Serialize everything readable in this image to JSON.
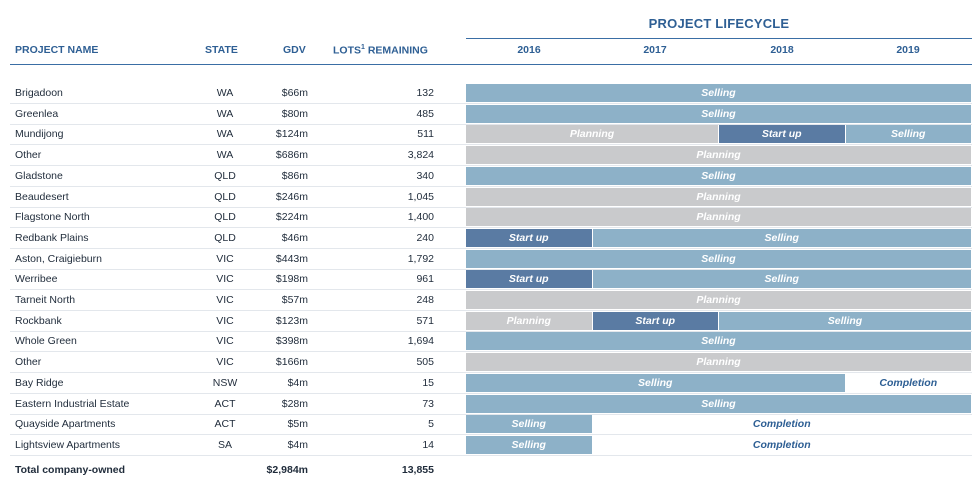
{
  "headers": {
    "project_name": "PROJECT NAME",
    "state": "STATE",
    "gdv": "GDV",
    "lots": "LOTS",
    "lots_sup": "1",
    "lots_suffix": " REMAINING",
    "lifecycle": "PROJECT LIFECYCLE",
    "years": [
      "2016",
      "2017",
      "2018",
      "2019"
    ]
  },
  "chart_data": {
    "type": "table",
    "title": "PROJECT LIFECYCLE",
    "x_range": [
      2016,
      2020
    ],
    "stage_colors": {
      "Selling": "#8db1c8",
      "Planning": "#c9cacc",
      "Start up": "#5a7ba3",
      "Completion": "#ffffff"
    },
    "rows": [
      {
        "name": "Brigadoon",
        "state": "WA",
        "gdv": "$66m",
        "lots": "132",
        "stages": [
          {
            "label": "Selling",
            "start": 2016,
            "end": 2020
          }
        ]
      },
      {
        "name": "Greenlea",
        "state": "WA",
        "gdv": "$80m",
        "lots": "485",
        "stages": [
          {
            "label": "Selling",
            "start": 2016,
            "end": 2020
          }
        ]
      },
      {
        "name": "Mundijong",
        "state": "WA",
        "gdv": "$124m",
        "lots": "511",
        "stages": [
          {
            "label": "Planning",
            "start": 2016,
            "end": 2018
          },
          {
            "label": "Start up",
            "start": 2018,
            "end": 2019
          },
          {
            "label": "Selling",
            "start": 2019,
            "end": 2020
          }
        ]
      },
      {
        "name": "Other",
        "state": "WA",
        "gdv": "$686m",
        "lots": "3,824",
        "stages": [
          {
            "label": "Planning",
            "start": 2016,
            "end": 2020
          }
        ]
      },
      {
        "name": "Gladstone",
        "state": "QLD",
        "gdv": "$86m",
        "lots": "340",
        "stages": [
          {
            "label": "Selling",
            "start": 2016,
            "end": 2020
          }
        ]
      },
      {
        "name": "Beaudesert",
        "state": "QLD",
        "gdv": "$246m",
        "lots": "1,045",
        "stages": [
          {
            "label": "Planning",
            "start": 2016,
            "end": 2020
          }
        ]
      },
      {
        "name": "Flagstone North",
        "state": "QLD",
        "gdv": "$224m",
        "lots": "1,400",
        "stages": [
          {
            "label": "Planning",
            "start": 2016,
            "end": 2020
          }
        ]
      },
      {
        "name": "Redbank Plains",
        "state": "QLD",
        "gdv": "$46m",
        "lots": "240",
        "stages": [
          {
            "label": "Start up",
            "start": 2016,
            "end": 2017
          },
          {
            "label": "Selling",
            "start": 2017,
            "end": 2020
          }
        ]
      },
      {
        "name": "Aston, Craigieburn",
        "state": "VIC",
        "gdv": "$443m",
        "lots": "1,792",
        "stages": [
          {
            "label": "Selling",
            "start": 2016,
            "end": 2020
          }
        ]
      },
      {
        "name": "Werribee",
        "state": "VIC",
        "gdv": "$198m",
        "lots": "961",
        "stages": [
          {
            "label": "Start up",
            "start": 2016,
            "end": 2017
          },
          {
            "label": "Selling",
            "start": 2017,
            "end": 2020
          }
        ]
      },
      {
        "name": "Tarneit North",
        "state": "VIC",
        "gdv": "$57m",
        "lots": "248",
        "stages": [
          {
            "label": "Planning",
            "start": 2016,
            "end": 2020
          }
        ]
      },
      {
        "name": "Rockbank",
        "state": "VIC",
        "gdv": "$123m",
        "lots": "571",
        "stages": [
          {
            "label": "Planning",
            "start": 2016,
            "end": 2017
          },
          {
            "label": "Start up",
            "start": 2017,
            "end": 2018
          },
          {
            "label": "Selling",
            "start": 2018,
            "end": 2020
          }
        ]
      },
      {
        "name": "Whole Green",
        "state": "VIC",
        "gdv": "$398m",
        "lots": "1,694",
        "stages": [
          {
            "label": "Selling",
            "start": 2016,
            "end": 2020
          }
        ]
      },
      {
        "name": "Other",
        "state": "VIC",
        "gdv": "$166m",
        "lots": "505",
        "stages": [
          {
            "label": "Planning",
            "start": 2016,
            "end": 2020
          }
        ]
      },
      {
        "name": "Bay Ridge",
        "state": "NSW",
        "gdv": "$4m",
        "lots": "15",
        "stages": [
          {
            "label": "Selling",
            "start": 2016,
            "end": 2019
          },
          {
            "label": "Completion",
            "start": 2019,
            "end": 2020
          }
        ]
      },
      {
        "name": "Eastern Industrial Estate",
        "state": "ACT",
        "gdv": "$28m",
        "lots": "73",
        "stages": [
          {
            "label": "Selling",
            "start": 2016,
            "end": 2020
          }
        ]
      },
      {
        "name": "Quayside Apartments",
        "state": "ACT",
        "gdv": "$5m",
        "lots": "5",
        "stages": [
          {
            "label": "Selling",
            "start": 2016,
            "end": 2017
          },
          {
            "label": "Completion",
            "start": 2017,
            "end": 2020
          }
        ]
      },
      {
        "name": "Lightsview Apartments",
        "state": "SA",
        "gdv": "$4m",
        "lots": "14",
        "stages": [
          {
            "label": "Selling",
            "start": 2016,
            "end": 2017
          },
          {
            "label": "Completion",
            "start": 2017,
            "end": 2020
          }
        ]
      }
    ],
    "total": {
      "name": "Total company-owned",
      "gdv": "$2,984m",
      "lots": "13,855"
    }
  }
}
